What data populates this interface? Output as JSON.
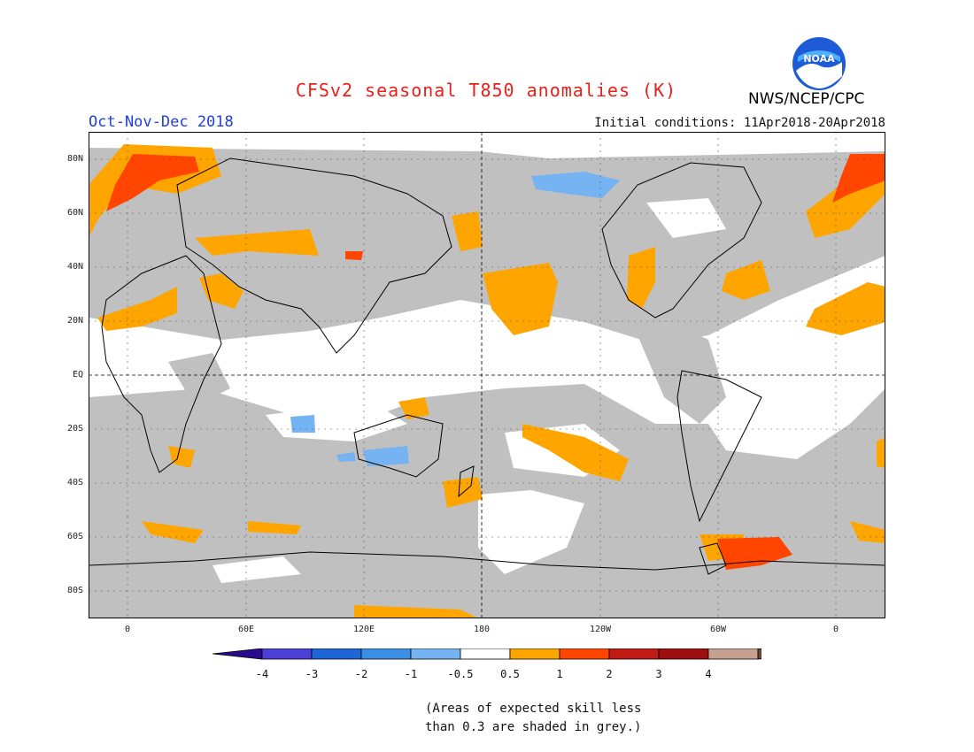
{
  "header": {
    "title": "CFSv2 seasonal T850 anomalies (K)",
    "period": "Oct-Nov-Dec 2018",
    "initial_conditions": "Initial conditions: 11Apr2018-20Apr2018",
    "agency": "NWS/NCEP/CPC",
    "logo_text": "NOAA"
  },
  "map": {
    "lat_labels": [
      "80N",
      "60N",
      "40N",
      "20N",
      "EQ",
      "20S",
      "40S",
      "60S",
      "80S"
    ],
    "lon_labels": [
      "0",
      "60E",
      "120E",
      "180",
      "120W",
      "60W",
      "0"
    ],
    "colors": {
      "grey": "#c0c0c0",
      "orange": "#ffa500",
      "red_orange": "#ff4500",
      "red": "#e01e10",
      "blue_light": "#75b3f2",
      "coast": "#000000"
    }
  },
  "colorbar": {
    "labels": [
      "-4",
      "-3",
      "-2",
      "-1",
      "-0.5",
      "0.5",
      "1",
      "2",
      "3",
      "4"
    ],
    "colors": [
      "#2a0a8c",
      "#4b3fd6",
      "#1e66d8",
      "#3c8fe6",
      "#75b3f2",
      "#ffffff",
      "#ffa500",
      "#ff4500",
      "#c21a14",
      "#9e0e0e",
      "#c8a090",
      "#6b4536"
    ]
  },
  "note": {
    "line1": "(Areas of expected skill less",
    "line2": "than 0.3 are shaded in grey.)"
  }
}
